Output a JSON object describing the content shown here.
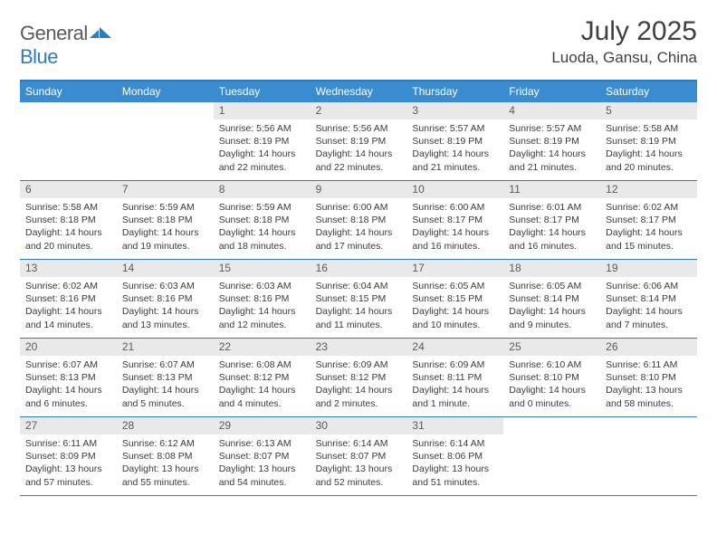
{
  "brand": {
    "part1": "General",
    "part2": "Blue"
  },
  "title": "July 2025",
  "location": "Luoda, Gansu, China",
  "colors": {
    "header_bg": "#3b8bd0",
    "border": "#2f7bbf",
    "daynum_bg": "#e9e9e9",
    "text": "#3a3a3a",
    "title_text": "#404040"
  },
  "dow": [
    "Sunday",
    "Monday",
    "Tuesday",
    "Wednesday",
    "Thursday",
    "Friday",
    "Saturday"
  ],
  "weeks": [
    [
      null,
      null,
      {
        "n": "1",
        "l": [
          "Sunrise: 5:56 AM",
          "Sunset: 8:19 PM",
          "Daylight: 14 hours",
          "and 22 minutes."
        ]
      },
      {
        "n": "2",
        "l": [
          "Sunrise: 5:56 AM",
          "Sunset: 8:19 PM",
          "Daylight: 14 hours",
          "and 22 minutes."
        ]
      },
      {
        "n": "3",
        "l": [
          "Sunrise: 5:57 AM",
          "Sunset: 8:19 PM",
          "Daylight: 14 hours",
          "and 21 minutes."
        ]
      },
      {
        "n": "4",
        "l": [
          "Sunrise: 5:57 AM",
          "Sunset: 8:19 PM",
          "Daylight: 14 hours",
          "and 21 minutes."
        ]
      },
      {
        "n": "5",
        "l": [
          "Sunrise: 5:58 AM",
          "Sunset: 8:19 PM",
          "Daylight: 14 hours",
          "and 20 minutes."
        ]
      }
    ],
    [
      {
        "n": "6",
        "l": [
          "Sunrise: 5:58 AM",
          "Sunset: 8:18 PM",
          "Daylight: 14 hours",
          "and 20 minutes."
        ]
      },
      {
        "n": "7",
        "l": [
          "Sunrise: 5:59 AM",
          "Sunset: 8:18 PM",
          "Daylight: 14 hours",
          "and 19 minutes."
        ]
      },
      {
        "n": "8",
        "l": [
          "Sunrise: 5:59 AM",
          "Sunset: 8:18 PM",
          "Daylight: 14 hours",
          "and 18 minutes."
        ]
      },
      {
        "n": "9",
        "l": [
          "Sunrise: 6:00 AM",
          "Sunset: 8:18 PM",
          "Daylight: 14 hours",
          "and 17 minutes."
        ]
      },
      {
        "n": "10",
        "l": [
          "Sunrise: 6:00 AM",
          "Sunset: 8:17 PM",
          "Daylight: 14 hours",
          "and 16 minutes."
        ]
      },
      {
        "n": "11",
        "l": [
          "Sunrise: 6:01 AM",
          "Sunset: 8:17 PM",
          "Daylight: 14 hours",
          "and 16 minutes."
        ]
      },
      {
        "n": "12",
        "l": [
          "Sunrise: 6:02 AM",
          "Sunset: 8:17 PM",
          "Daylight: 14 hours",
          "and 15 minutes."
        ]
      }
    ],
    [
      {
        "n": "13",
        "l": [
          "Sunrise: 6:02 AM",
          "Sunset: 8:16 PM",
          "Daylight: 14 hours",
          "and 14 minutes."
        ]
      },
      {
        "n": "14",
        "l": [
          "Sunrise: 6:03 AM",
          "Sunset: 8:16 PM",
          "Daylight: 14 hours",
          "and 13 minutes."
        ]
      },
      {
        "n": "15",
        "l": [
          "Sunrise: 6:03 AM",
          "Sunset: 8:16 PM",
          "Daylight: 14 hours",
          "and 12 minutes."
        ]
      },
      {
        "n": "16",
        "l": [
          "Sunrise: 6:04 AM",
          "Sunset: 8:15 PM",
          "Daylight: 14 hours",
          "and 11 minutes."
        ]
      },
      {
        "n": "17",
        "l": [
          "Sunrise: 6:05 AM",
          "Sunset: 8:15 PM",
          "Daylight: 14 hours",
          "and 10 minutes."
        ]
      },
      {
        "n": "18",
        "l": [
          "Sunrise: 6:05 AM",
          "Sunset: 8:14 PM",
          "Daylight: 14 hours",
          "and 9 minutes."
        ]
      },
      {
        "n": "19",
        "l": [
          "Sunrise: 6:06 AM",
          "Sunset: 8:14 PM",
          "Daylight: 14 hours",
          "and 7 minutes."
        ]
      }
    ],
    [
      {
        "n": "20",
        "l": [
          "Sunrise: 6:07 AM",
          "Sunset: 8:13 PM",
          "Daylight: 14 hours",
          "and 6 minutes."
        ]
      },
      {
        "n": "21",
        "l": [
          "Sunrise: 6:07 AM",
          "Sunset: 8:13 PM",
          "Daylight: 14 hours",
          "and 5 minutes."
        ]
      },
      {
        "n": "22",
        "l": [
          "Sunrise: 6:08 AM",
          "Sunset: 8:12 PM",
          "Daylight: 14 hours",
          "and 4 minutes."
        ]
      },
      {
        "n": "23",
        "l": [
          "Sunrise: 6:09 AM",
          "Sunset: 8:12 PM",
          "Daylight: 14 hours",
          "and 2 minutes."
        ]
      },
      {
        "n": "24",
        "l": [
          "Sunrise: 6:09 AM",
          "Sunset: 8:11 PM",
          "Daylight: 14 hours",
          "and 1 minute."
        ]
      },
      {
        "n": "25",
        "l": [
          "Sunrise: 6:10 AM",
          "Sunset: 8:10 PM",
          "Daylight: 14 hours",
          "and 0 minutes."
        ]
      },
      {
        "n": "26",
        "l": [
          "Sunrise: 6:11 AM",
          "Sunset: 8:10 PM",
          "Daylight: 13 hours",
          "and 58 minutes."
        ]
      }
    ],
    [
      {
        "n": "27",
        "l": [
          "Sunrise: 6:11 AM",
          "Sunset: 8:09 PM",
          "Daylight: 13 hours",
          "and 57 minutes."
        ]
      },
      {
        "n": "28",
        "l": [
          "Sunrise: 6:12 AM",
          "Sunset: 8:08 PM",
          "Daylight: 13 hours",
          "and 55 minutes."
        ]
      },
      {
        "n": "29",
        "l": [
          "Sunrise: 6:13 AM",
          "Sunset: 8:07 PM",
          "Daylight: 13 hours",
          "and 54 minutes."
        ]
      },
      {
        "n": "30",
        "l": [
          "Sunrise: 6:14 AM",
          "Sunset: 8:07 PM",
          "Daylight: 13 hours",
          "and 52 minutes."
        ]
      },
      {
        "n": "31",
        "l": [
          "Sunrise: 6:14 AM",
          "Sunset: 8:06 PM",
          "Daylight: 13 hours",
          "and 51 minutes."
        ]
      },
      null,
      null
    ]
  ]
}
